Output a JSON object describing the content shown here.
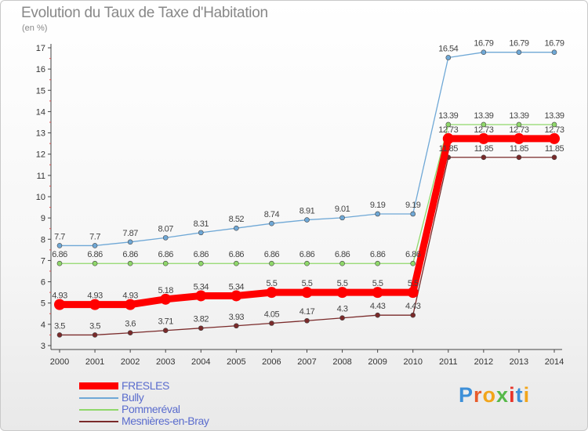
{
  "chart_data": {
    "type": "line",
    "title": "Evolution du Taux de Taxe d'Habitation",
    "unit_label": "(en %)",
    "x": [
      2000,
      2001,
      2002,
      2003,
      2004,
      2005,
      2006,
      2007,
      2008,
      2009,
      2010,
      2011,
      2012,
      2013,
      2014
    ],
    "ylim": [
      3,
      17
    ],
    "yticks": [
      3,
      4,
      5,
      6,
      7,
      8,
      9,
      10,
      11,
      12,
      13,
      14,
      15,
      16,
      17
    ],
    "grid": false,
    "legend_position": "bottom-left",
    "series": [
      {
        "name": "FRESLES",
        "color": "#ff0000",
        "values": [
          4.93,
          4.93,
          4.93,
          5.18,
          5.34,
          5.34,
          5.5,
          5.5,
          5.5,
          5.5,
          5.5,
          12.73,
          12.73,
          12.73,
          12.73
        ],
        "labels": [
          "4.93",
          "4.93",
          "4.93",
          "5.18",
          "5.34",
          "5.34",
          "5.5",
          "5.5",
          "5.5",
          "5.5",
          "5.5",
          "12.73",
          "12.73",
          "12.73",
          "12.73"
        ]
      },
      {
        "name": "Bully",
        "color": "#6fa8d6",
        "values": [
          7.7,
          7.7,
          7.87,
          8.07,
          8.31,
          8.52,
          8.74,
          8.91,
          9.01,
          9.19,
          9.19,
          16.54,
          16.79,
          16.79,
          16.79
        ],
        "labels": [
          "7.7",
          "7.7",
          "7.87",
          "8.07",
          "8.31",
          "8.52",
          "8.74",
          "8.91",
          "9.01",
          "9.19",
          "9.19",
          "16.54",
          "16.79",
          "16.79",
          "16.79"
        ]
      },
      {
        "name": "Pommeréval",
        "color": "#8fd86a",
        "values": [
          6.86,
          6.86,
          6.86,
          6.86,
          6.86,
          6.86,
          6.86,
          6.86,
          6.86,
          6.86,
          6.86,
          13.39,
          13.39,
          13.39,
          13.39
        ],
        "labels": [
          "6.86",
          "6.86",
          "6.86",
          "6.86",
          "6.86",
          "6.86",
          "6.86",
          "6.86",
          "6.86",
          "6.86",
          "6.86",
          "13.39",
          "13.39",
          "13.39",
          "13.39"
        ]
      },
      {
        "name": "Mesnières-en-Bray",
        "color": "#7a2a2a",
        "values": [
          3.5,
          3.5,
          3.6,
          3.71,
          3.82,
          3.93,
          4.05,
          4.17,
          4.3,
          4.43,
          4.43,
          11.85,
          11.85,
          11.85,
          11.85
        ],
        "labels": [
          "3.5",
          "3.5",
          "3.6",
          "3.71",
          "3.82",
          "3.93",
          "4.05",
          "4.17",
          "4.3",
          "4.43",
          "4.43",
          "11.85",
          "11.85",
          "11.85",
          "11.85"
        ]
      }
    ]
  },
  "legend": {
    "items": [
      {
        "label": "FRESLES",
        "color": "#ff0000"
      },
      {
        "label": "Bully",
        "color": "#6fa8d6"
      },
      {
        "label": "Pommeréval",
        "color": "#8fd86a"
      },
      {
        "label": "Mesnières-en-Bray",
        "color": "#7a2a2a"
      }
    ]
  },
  "brand": {
    "logo_text": "Proxiti",
    "letter_colors": [
      "#3d8fd8",
      "#e85b2a",
      "#f2a51a",
      "#56b94a",
      "#e8342a",
      "#3d8fd8",
      "#f2a51a"
    ]
  }
}
